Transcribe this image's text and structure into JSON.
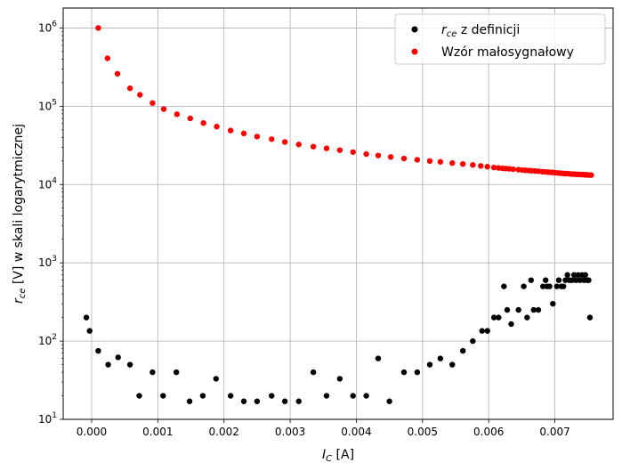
{
  "chart_data": {
    "type": "scatter",
    "xlabel_main": "I",
    "xlabel_sub": "C",
    "xlabel_unit": " [A]",
    "ylabel_main": "r",
    "ylabel_sub": "ce",
    "ylabel_rest": " [V] w skali logarytmicznej",
    "x_ticks": [
      "0.000",
      "0.001",
      "0.002",
      "0.003",
      "0.004",
      "0.005",
      "0.006",
      "0.007"
    ],
    "x_tick_values": [
      0,
      0.001,
      0.002,
      0.003,
      0.004,
      0.005,
      0.006,
      0.007
    ],
    "y_ticks": [
      {
        "base": "10",
        "exp": "1",
        "value": 10
      },
      {
        "base": "10",
        "exp": "2",
        "value": 100
      },
      {
        "base": "10",
        "exp": "3",
        "value": 1000
      },
      {
        "base": "10",
        "exp": "4",
        "value": 10000
      },
      {
        "base": "10",
        "exp": "5",
        "value": 100000
      },
      {
        "base": "10",
        "exp": "6",
        "value": 1000000
      }
    ],
    "xlim": [
      -0.00043,
      0.00788
    ],
    "ylim": [
      10,
      1800000
    ],
    "yscale": "log",
    "grid": true,
    "legend_position": "top-right",
    "series": [
      {
        "legend_main": "r",
        "legend_sub": "ce",
        "legend_rest": " z definicji",
        "color": "#000000",
        "x": [
          -8e-05,
          -3e-05,
          0.0001,
          0.00025,
          0.0004,
          0.00058,
          0.00072,
          0.00092,
          0.00108,
          0.00128,
          0.00148,
          0.00168,
          0.00188,
          0.0021,
          0.0023,
          0.0025,
          0.00272,
          0.00292,
          0.00313,
          0.00335,
          0.00355,
          0.00375,
          0.00395,
          0.00415,
          0.00433,
          0.0045,
          0.00472,
          0.00492,
          0.00511,
          0.00527,
          0.00545,
          0.00561,
          0.00576,
          0.0059,
          0.00598,
          0.00608,
          0.00615,
          0.00623,
          0.00628,
          0.00634,
          0.00645,
          0.00653,
          0.00658,
          0.00664,
          0.00668,
          0.00675,
          0.00682,
          0.00686,
          0.00688,
          0.00692,
          0.00697,
          0.00703,
          0.00706,
          0.0071,
          0.00713,
          0.00716,
          0.00719,
          0.00722,
          0.00726,
          0.00729,
          0.00732,
          0.00735,
          0.00738,
          0.00741,
          0.00744,
          0.00746,
          0.00749,
          0.00751,
          0.00753
        ],
        "y": [
          200,
          135,
          75,
          50,
          62,
          50,
          20,
          40,
          20,
          40,
          17,
          20,
          33,
          20,
          17,
          17,
          20,
          17,
          17,
          40,
          20,
          33,
          20,
          20,
          60,
          17,
          40,
          40,
          50,
          60,
          50,
          75,
          100,
          135,
          135,
          200,
          200,
          500,
          250,
          165,
          250,
          500,
          200,
          600,
          250,
          250,
          500,
          600,
          500,
          500,
          300,
          500,
          600,
          500,
          500,
          600,
          700,
          600,
          600,
          700,
          600,
          700,
          600,
          700,
          600,
          700,
          600,
          600,
          200
        ]
      },
      {
        "legend_main": "Wzór małosygnałowy",
        "legend_sub": "",
        "legend_rest": "",
        "color": "#ff0000",
        "x": [
          0.0001,
          0.00024,
          0.00039,
          0.00058,
          0.00073,
          0.00092,
          0.00109,
          0.00129,
          0.00149,
          0.00169,
          0.00189,
          0.0021,
          0.0023,
          0.0025,
          0.00272,
          0.00292,
          0.00313,
          0.00335,
          0.00355,
          0.00375,
          0.00395,
          0.00415,
          0.00433,
          0.00452,
          0.00472,
          0.00492,
          0.00511,
          0.00527,
          0.00545,
          0.00561,
          0.00576,
          0.00588,
          0.00598,
          0.00608,
          0.00615,
          0.00621,
          0.00626,
          0.00631,
          0.00637,
          0.00645,
          0.00651,
          0.00656,
          0.00661,
          0.00665,
          0.0067,
          0.00675,
          0.00681,
          0.00686,
          0.0069,
          0.00695,
          0.00699,
          0.00703,
          0.00707,
          0.00711,
          0.00715,
          0.00718,
          0.00722,
          0.00726,
          0.00729,
          0.00733,
          0.00736,
          0.0074,
          0.00743,
          0.00746,
          0.00749,
          0.00752,
          0.00755
        ],
        "y": [
          1000000,
          410000,
          260000,
          170000,
          140000,
          110000,
          92000,
          79000,
          70000,
          61000,
          55000,
          49000,
          45000,
          41000,
          38000,
          35000,
          32500,
          30500,
          29000,
          27500,
          26000,
          24500,
          23500,
          22500,
          21500,
          20700,
          20000,
          19500,
          18800,
          18300,
          17800,
          17300,
          16900,
          16500,
          16300,
          16100,
          16000,
          15900,
          15700,
          15500,
          15300,
          15200,
          15100,
          15000,
          14900,
          14800,
          14600,
          14500,
          14400,
          14300,
          14200,
          14100,
          14000,
          13900,
          13800,
          13800,
          13700,
          13600,
          13600,
          13500,
          13500,
          13400,
          13400,
          13300,
          13300,
          13200,
          13200
        ]
      }
    ]
  }
}
